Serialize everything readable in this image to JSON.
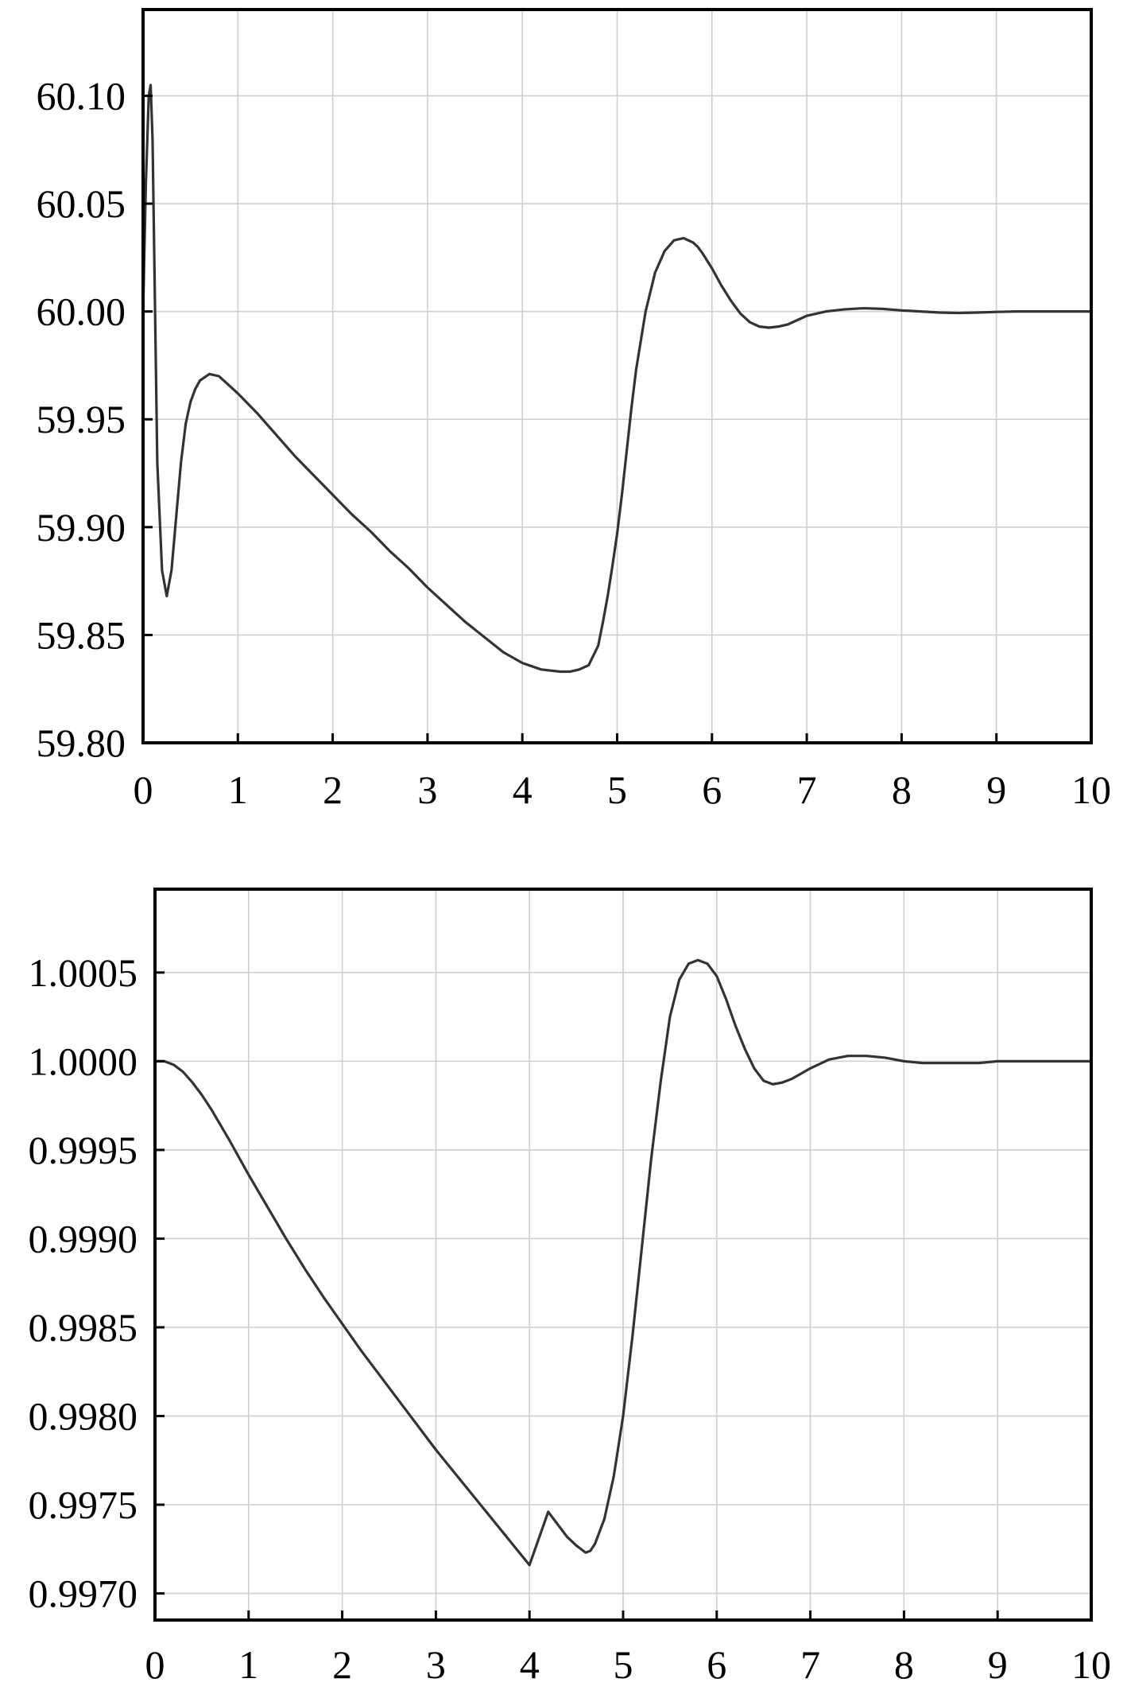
{
  "chart_data": [
    {
      "type": "line",
      "title": "",
      "xlabel": "",
      "ylabel": "",
      "xlim": [
        0,
        10
      ],
      "ylim": [
        59.8,
        60.14
      ],
      "grid": true,
      "legend": "none",
      "x_ticks": [
        0,
        1,
        2,
        3,
        4,
        5,
        6,
        7,
        8,
        9,
        10
      ],
      "x_tick_labels": [
        "0",
        "1",
        "2",
        "3",
        "4",
        "5",
        "6",
        "7",
        "8",
        "9",
        "10"
      ],
      "y_ticks": [
        59.8,
        59.85,
        59.9,
        59.95,
        60.0,
        60.05,
        60.1
      ],
      "y_tick_labels": [
        "59.80",
        "59.85",
        "59.90",
        "59.95",
        "60.00",
        "60.05",
        "60.10"
      ],
      "series": [
        {
          "color": "#333333",
          "x": [
            0,
            0.03,
            0.06,
            0.08,
            0.1,
            0.12,
            0.15,
            0.2,
            0.25,
            0.3,
            0.35,
            0.4,
            0.45,
            0.5,
            0.55,
            0.6,
            0.7,
            0.8,
            0.9,
            1.0,
            1.2,
            1.4,
            1.6,
            1.8,
            2.0,
            2.2,
            2.4,
            2.6,
            2.8,
            3.0,
            3.2,
            3.4,
            3.6,
            3.8,
            4.0,
            4.2,
            4.4,
            4.5,
            4.6,
            4.7,
            4.8,
            4.85,
            4.9,
            4.95,
            5.0,
            5.05,
            5.1,
            5.15,
            5.2,
            5.3,
            5.4,
            5.5,
            5.6,
            5.7,
            5.8,
            5.85,
            5.9,
            6.0,
            6.1,
            6.2,
            6.3,
            6.4,
            6.5,
            6.6,
            6.7,
            6.8,
            6.9,
            7.0,
            7.2,
            7.4,
            7.6,
            7.8,
            8.0,
            8.2,
            8.4,
            8.6,
            8.8,
            9.0,
            9.2,
            9.4,
            9.6,
            9.8,
            10.0
          ],
          "y": [
            60.0,
            60.06,
            60.1,
            60.105,
            60.08,
            60.02,
            59.93,
            59.88,
            59.868,
            59.88,
            59.905,
            59.93,
            59.948,
            59.958,
            59.964,
            59.968,
            59.971,
            59.97,
            59.966,
            59.962,
            59.953,
            59.943,
            59.933,
            59.924,
            59.915,
            59.906,
            59.898,
            59.889,
            59.881,
            59.872,
            59.864,
            59.856,
            59.849,
            59.842,
            59.837,
            59.834,
            59.833,
            59.833,
            59.834,
            59.836,
            59.845,
            59.856,
            59.868,
            59.882,
            59.897,
            59.915,
            59.935,
            59.955,
            59.973,
            60.0,
            60.018,
            60.028,
            60.033,
            60.034,
            60.032,
            60.03,
            60.027,
            60.02,
            60.012,
            60.005,
            59.999,
            59.995,
            59.993,
            59.9925,
            59.993,
            59.994,
            59.996,
            59.998,
            60.0,
            60.001,
            60.0015,
            60.0012,
            60.0005,
            60.0,
            59.9995,
            59.9993,
            59.9995,
            59.9998,
            60.0,
            60.0,
            60.0,
            60.0,
            60.0
          ]
        }
      ]
    },
    {
      "type": "line",
      "title": "",
      "xlabel": "",
      "ylabel": "",
      "xlim": [
        0,
        10
      ],
      "ylim": [
        0.99685,
        1.00097
      ],
      "grid": true,
      "legend": "none",
      "x_ticks": [
        0,
        1,
        2,
        3,
        4,
        5,
        6,
        7,
        8,
        9,
        10
      ],
      "x_tick_labels": [
        "0",
        "1",
        "2",
        "3",
        "4",
        "5",
        "6",
        "7",
        "8",
        "9",
        "10"
      ],
      "y_ticks": [
        0.997,
        0.9975,
        0.998,
        0.9985,
        0.999,
        0.9995,
        1.0,
        1.0005
      ],
      "y_tick_labels": [
        "0.9970",
        "0.9975",
        "0.9980",
        "0.9985",
        "0.9990",
        "0.9995",
        "1.0000",
        "1.0005"
      ],
      "series": [
        {
          "color": "#333333",
          "x": [
            0,
            0.1,
            0.2,
            0.3,
            0.4,
            0.5,
            0.6,
            0.8,
            1.0,
            1.2,
            1.4,
            1.6,
            1.8,
            2.0,
            2.2,
            2.4,
            2.6,
            2.8,
            3.0,
            3.2,
            3.4,
            3.6,
            3.8,
            4.0,
            4.2,
            4.4,
            4.5,
            4.55,
            4.6,
            4.65,
            4.7,
            4.8,
            4.9,
            5.0,
            5.1,
            5.2,
            5.3,
            5.4,
            5.5,
            5.6,
            5.7,
            5.8,
            5.85,
            5.9,
            6.0,
            6.1,
            6.2,
            6.3,
            6.4,
            6.5,
            6.6,
            6.7,
            6.8,
            6.9,
            7.0,
            7.2,
            7.4,
            7.6,
            7.8,
            8.0,
            8.2,
            8.4,
            8.6,
            8.8,
            9.0,
            9.2,
            9.4,
            9.6,
            9.8,
            10.0
          ],
          "y": [
            1.0,
            1.0,
            0.99998,
            0.99994,
            0.99988,
            0.99981,
            0.99973,
            0.99955,
            0.99936,
            0.99918,
            0.999,
            0.99883,
            0.99867,
            0.99852,
            0.99837,
            0.99823,
            0.99809,
            0.99795,
            0.99781,
            0.99768,
            0.99755,
            0.99742,
            0.99729,
            0.99716,
            0.99746,
            0.99732,
            0.99727,
            0.99725,
            0.99723,
            0.99724,
            0.99728,
            0.99742,
            0.99766,
            0.998,
            0.99845,
            0.99895,
            0.99945,
            0.99988,
            1.00025,
            1.00046,
            1.00055,
            1.00057,
            1.00056,
            1.00055,
            1.00048,
            1.00035,
            1.0002,
            1.00007,
            0.99996,
            0.99989,
            0.99987,
            0.99988,
            0.9999,
            0.99993,
            0.99996,
            1.00001,
            1.00003,
            1.00003,
            1.00002,
            1.0,
            0.99999,
            0.99999,
            0.99999,
            0.99999,
            1.0,
            1.0,
            1.0,
            1.0,
            1.0,
            1.0
          ]
        }
      ]
    }
  ]
}
